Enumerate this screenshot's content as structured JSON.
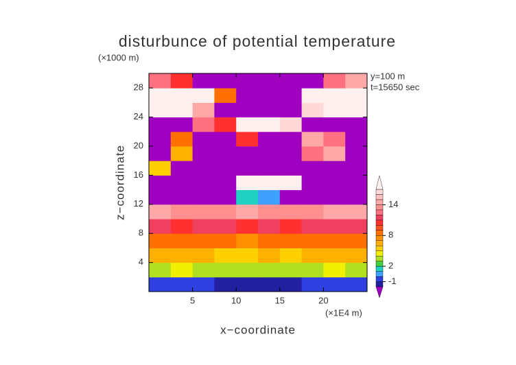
{
  "chart_data": {
    "type": "heatmap",
    "title": "disturbunce of potential temperature",
    "y_unit": "(×1000 m)",
    "x_unit": "(×1E4 m)",
    "x_label": "x−coordinate",
    "y_label": "z−coordinate",
    "annotations": [
      "y=100 m",
      "t=15650 sec"
    ],
    "xlim": [
      0,
      25
    ],
    "ylim": [
      0,
      30
    ],
    "xticks": [
      5,
      10,
      15,
      20
    ],
    "yticks": [
      4,
      8,
      12,
      16,
      20,
      24,
      28
    ],
    "x": [
      1.25,
      3.75,
      6.25,
      8.75,
      11.25,
      13.75,
      16.25,
      18.75,
      21.25,
      23.75
    ],
    "y": [
      1,
      3,
      5,
      7,
      9,
      11,
      13,
      15,
      17,
      19,
      21,
      23,
      25,
      27,
      29
    ],
    "values": [
      [
        -1,
        -1,
        -1,
        -1.5,
        -1.5,
        -1.5,
        -1.5,
        -1,
        -1,
        -1
      ],
      [
        3,
        4,
        3.5,
        3,
        3,
        3.5,
        3,
        3.5,
        4,
        3
      ],
      [
        6,
        6,
        6,
        5.5,
        5.5,
        6,
        5.5,
        6,
        6,
        6
      ],
      [
        8,
        8.5,
        8,
        8,
        7.5,
        8,
        8,
        8.5,
        8,
        8
      ],
      [
        11,
        10.5,
        11,
        11,
        10.5,
        11,
        10.5,
        11,
        11,
        11
      ],
      [
        14,
        13,
        13.5,
        13,
        14,
        13.5,
        13,
        13.5,
        14,
        14
      ],
      [
        -3,
        -3,
        -3,
        -3,
        1,
        0,
        -3,
        -3,
        -3,
        -3
      ],
      [
        -3,
        -3,
        -3,
        -3,
        17,
        20,
        17,
        -3,
        -3,
        -3
      ],
      [
        5,
        -3,
        -3,
        -3,
        -3,
        -3,
        -3,
        -3,
        -3,
        -3
      ],
      [
        -3,
        6,
        -3,
        -3,
        -3,
        -3,
        -3,
        12,
        14,
        -3
      ],
      [
        -3,
        8,
        -3,
        -3,
        10,
        -3,
        -3,
        14,
        12,
        -3
      ],
      [
        -3,
        -3,
        12,
        10,
        18,
        20,
        16,
        -3,
        -3,
        -3
      ],
      [
        20,
        20,
        14,
        -3,
        -3,
        -3,
        -3,
        16,
        20,
        20
      ],
      [
        20,
        20,
        18,
        8,
        -3,
        -3,
        -3,
        20,
        20,
        20
      ],
      [
        12,
        10,
        -3,
        -3,
        -3,
        -3,
        -3,
        -3,
        12,
        14
      ]
    ],
    "levels": [
      -2,
      -1,
      0,
      1,
      2,
      3,
      4,
      5,
      6,
      7,
      8,
      9,
      10,
      11,
      12,
      13,
      14,
      15,
      16,
      17
    ],
    "colors": [
      "#a000c0",
      "#2020a0",
      "#3040e0",
      "#40a0ff",
      "#20d0c0",
      "#40d040",
      "#b0e020",
      "#f0f000",
      "#ffd000",
      "#ffb000",
      "#ff9000",
      "#ff7000",
      "#ff5020",
      "#ff3030",
      "#f04060",
      "#ff7080",
      "#ff9090",
      "#ffa8a8",
      "#ffc0c0",
      "#ffd8d8",
      "#fff0f0"
    ],
    "colorbar_ticks": [
      14,
      8,
      2,
      -1
    ]
  }
}
